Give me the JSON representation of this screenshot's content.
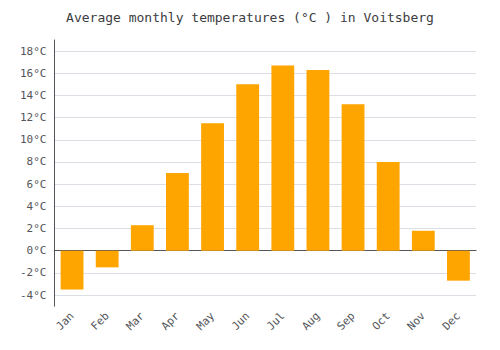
{
  "chart_data": {
    "type": "bar",
    "title": "Average monthly temperatures (°C ) in Voitsberg",
    "categories": [
      "Jan",
      "Feb",
      "Mar",
      "Apr",
      "May",
      "Jun",
      "Jul",
      "Aug",
      "Sep",
      "Oct",
      "Nov",
      "Dec"
    ],
    "values": [
      -3.5,
      -1.5,
      2.3,
      7.0,
      11.5,
      15.0,
      16.7,
      16.3,
      13.2,
      8.0,
      1.8,
      -2.7
    ],
    "color": "#FFA500",
    "ylim": [
      -5,
      19
    ],
    "yticks": [
      {
        "value": -4,
        "label": "-4°C"
      },
      {
        "value": -2,
        "label": "-2°C"
      },
      {
        "value": 0,
        "label": "0°C"
      },
      {
        "value": 2,
        "label": "2°C"
      },
      {
        "value": 4,
        "label": "4°C"
      },
      {
        "value": 6,
        "label": "6°C"
      },
      {
        "value": 8,
        "label": "8°C"
      },
      {
        "value": 10,
        "label": "10°C"
      },
      {
        "value": 12,
        "label": "12°C"
      },
      {
        "value": 14,
        "label": "14°C"
      },
      {
        "value": 16,
        "label": "16°C"
      },
      {
        "value": 18,
        "label": "18°C"
      }
    ],
    "grid": true
  }
}
